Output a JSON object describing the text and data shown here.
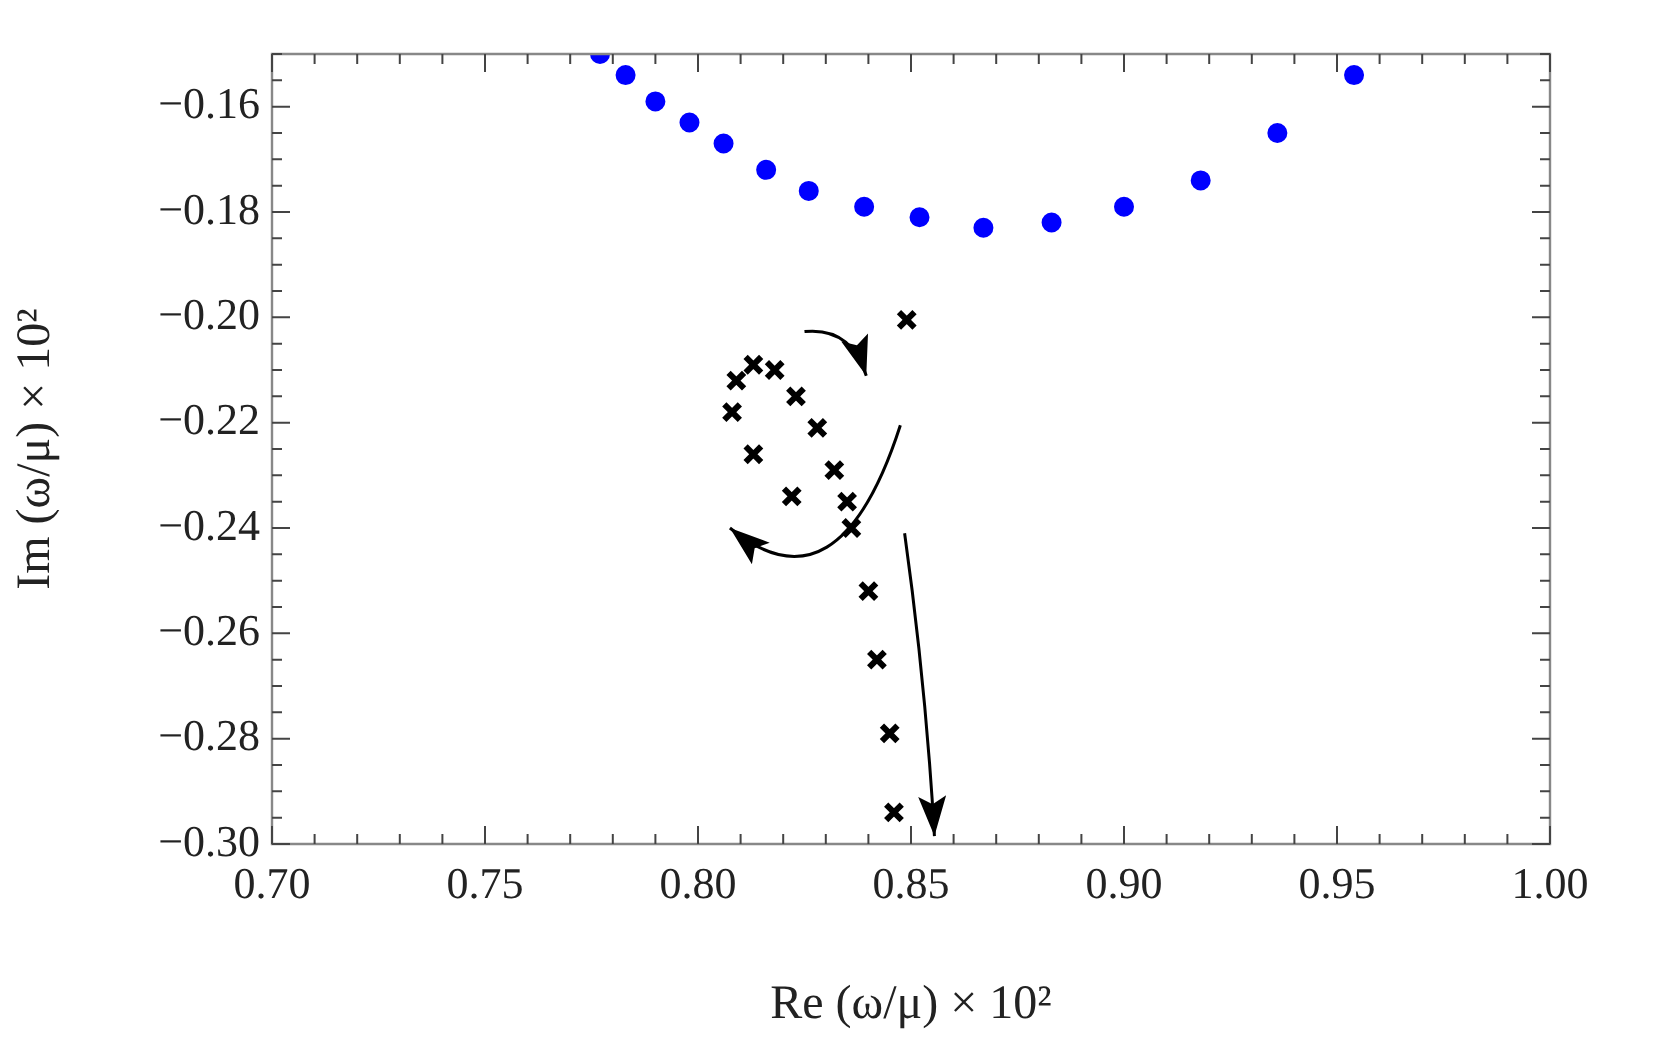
{
  "chart_data": {
    "type": "scatter",
    "xlabel": "Re (ω/μ) × 10²",
    "ylabel": "Im (ω/μ) × 10²",
    "xlim": [
      0.7,
      1.0
    ],
    "xticks": [
      {
        "value": 0.7,
        "label": "0.70"
      },
      {
        "value": 0.71,
        "label": null
      },
      {
        "value": 0.72,
        "label": null
      },
      {
        "value": 0.73,
        "label": null
      },
      {
        "value": 0.74,
        "label": null
      },
      {
        "value": 0.75,
        "label": "0.75"
      },
      {
        "value": 0.76,
        "label": null
      },
      {
        "value": 0.77,
        "label": null
      },
      {
        "value": 0.78,
        "label": null
      },
      {
        "value": 0.79,
        "label": null
      },
      {
        "value": 0.8,
        "label": "0.80"
      },
      {
        "value": 0.81,
        "label": null
      },
      {
        "value": 0.82,
        "label": null
      },
      {
        "value": 0.83,
        "label": null
      },
      {
        "value": 0.84,
        "label": null
      },
      {
        "value": 0.85,
        "label": "0.85"
      },
      {
        "value": 0.86,
        "label": null
      },
      {
        "value": 0.87,
        "label": null
      },
      {
        "value": 0.88,
        "label": null
      },
      {
        "value": 0.89,
        "label": null
      },
      {
        "value": 0.9,
        "label": "0.90"
      },
      {
        "value": 0.91,
        "label": null
      },
      {
        "value": 0.92,
        "label": null
      },
      {
        "value": 0.93,
        "label": null
      },
      {
        "value": 0.94,
        "label": null
      },
      {
        "value": 0.95,
        "label": "0.95"
      },
      {
        "value": 0.96,
        "label": null
      },
      {
        "value": 0.97,
        "label": null
      },
      {
        "value": 0.98,
        "label": null
      },
      {
        "value": 0.99,
        "label": null
      },
      {
        "value": 1.0,
        "label": "1.00"
      }
    ],
    "ylim": [
      -0.3,
      -0.15
    ],
    "yticks": [
      {
        "value": -0.3,
        "label": "−0.30"
      },
      {
        "value": -0.295,
        "label": null
      },
      {
        "value": -0.29,
        "label": null
      },
      {
        "value": -0.285,
        "label": null
      },
      {
        "value": -0.28,
        "label": "−0.28"
      },
      {
        "value": -0.275,
        "label": null
      },
      {
        "value": -0.27,
        "label": null
      },
      {
        "value": -0.265,
        "label": null
      },
      {
        "value": -0.26,
        "label": "−0.26"
      },
      {
        "value": -0.255,
        "label": null
      },
      {
        "value": -0.25,
        "label": null
      },
      {
        "value": -0.245,
        "label": null
      },
      {
        "value": -0.24,
        "label": "−0.24"
      },
      {
        "value": -0.235,
        "label": null
      },
      {
        "value": -0.23,
        "label": null
      },
      {
        "value": -0.225,
        "label": null
      },
      {
        "value": -0.22,
        "label": "−0.22"
      },
      {
        "value": -0.215,
        "label": null
      },
      {
        "value": -0.21,
        "label": null
      },
      {
        "value": -0.205,
        "label": null
      },
      {
        "value": -0.2,
        "label": "−0.20"
      },
      {
        "value": -0.195,
        "label": null
      },
      {
        "value": -0.19,
        "label": null
      },
      {
        "value": -0.185,
        "label": null
      },
      {
        "value": -0.18,
        "label": "−0.18"
      },
      {
        "value": -0.175,
        "label": null
      },
      {
        "value": -0.17,
        "label": null
      },
      {
        "value": -0.165,
        "label": null
      },
      {
        "value": -0.16,
        "label": "−0.16"
      },
      {
        "value": -0.155,
        "label": null
      },
      {
        "value": -0.15,
        "label": null
      }
    ],
    "grid": false,
    "legend": false,
    "series": [
      {
        "color": "#0000ff",
        "marker": "circle",
        "x": [
          0.777,
          0.783,
          0.79,
          0.798,
          0.806,
          0.816,
          0.826,
          0.839,
          0.852,
          0.867,
          0.883,
          0.9,
          0.918,
          0.936,
          0.954
        ],
        "values": [
          -0.15,
          -0.154,
          -0.159,
          -0.163,
          -0.167,
          -0.172,
          -0.176,
          -0.179,
          -0.181,
          -0.183,
          -0.182,
          -0.179,
          -0.174,
          -0.165,
          -0.154
        ]
      },
      {
        "color": "#000000",
        "marker": "cross",
        "x": [
          0.849,
          0.818,
          0.813,
          0.809,
          0.808,
          0.823,
          0.828,
          0.813,
          0.832,
          0.822,
          0.835,
          0.836,
          0.84,
          0.842,
          0.845,
          0.846
        ],
        "values": [
          -0.2005,
          -0.21,
          -0.209,
          -0.212,
          -0.218,
          -0.215,
          -0.221,
          -0.226,
          -0.229,
          -0.234,
          -0.235,
          -0.24,
          -0.252,
          -0.265,
          -0.279,
          -0.294
        ]
      }
    ]
  }
}
